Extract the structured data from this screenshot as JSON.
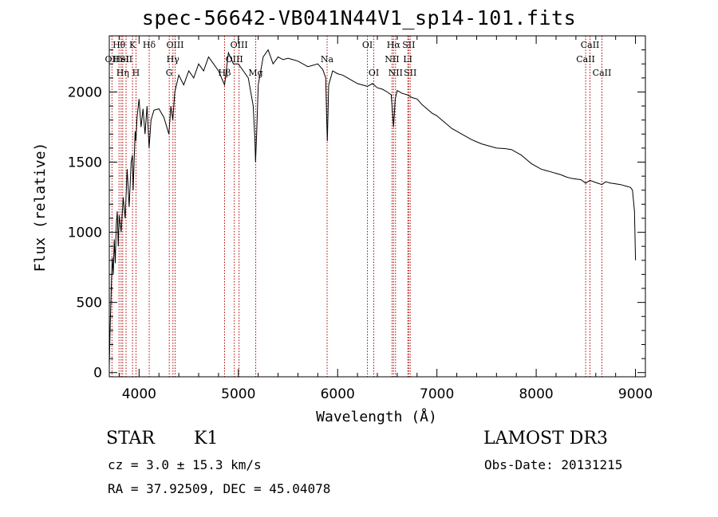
{
  "colors": {
    "spectrum": "#000000",
    "line_marker": "#b00000",
    "axes": "#000000",
    "background": "#ffffff"
  },
  "info": {
    "object_class": "STAR",
    "subclass": "K1",
    "survey": "LAMOST DR3",
    "cz": "cz = 3.0 ± 15.3 km/s",
    "obs_date": "Obs-Date: 20131215",
    "ra_dec": "RA =  37.92509, DEC =  45.04078"
  },
  "chart_data": {
    "type": "line",
    "title": "spec-56642-VB041N44V1_sp14-101.fits",
    "xlabel": "Wavelength (Å)",
    "ylabel": "Flux (relative)",
    "xlim": [
      3700,
      9100
    ],
    "ylim": [
      -30,
      2400
    ],
    "xticks": [
      4000,
      5000,
      6000,
      7000,
      8000,
      9000
    ],
    "yticks": [
      0,
      500,
      1000,
      1500,
      2000
    ],
    "series": [
      {
        "name": "spectrum",
        "x": [
          3700,
          3710,
          3720,
          3730,
          3740,
          3750,
          3760,
          3770,
          3780,
          3790,
          3800,
          3820,
          3840,
          3860,
          3880,
          3900,
          3920,
          3933,
          3940,
          3960,
          3968,
          3980,
          4000,
          4020,
          4040,
          4060,
          4080,
          4101,
          4120,
          4150,
          4200,
          4250,
          4300,
          4320,
          4340,
          4360,
          4400,
          4450,
          4500,
          4550,
          4600,
          4650,
          4700,
          4750,
          4800,
          4861,
          4900,
          4950,
          5000,
          5050,
          5100,
          5150,
          5167,
          5173,
          5184,
          5200,
          5250,
          5300,
          5350,
          5400,
          5450,
          5500,
          5550,
          5600,
          5650,
          5700,
          5750,
          5800,
          5850,
          5880,
          5890,
          5896,
          5910,
          5950,
          6000,
          6050,
          6100,
          6150,
          6200,
          6250,
          6300,
          6350,
          6400,
          6450,
          6500,
          6540,
          6563,
          6580,
          6600,
          6650,
          6700,
          6750,
          6800,
          6850,
          6900,
          6950,
          7000,
          7050,
          7100,
          7150,
          7200,
          7250,
          7300,
          7350,
          7400,
          7450,
          7500,
          7550,
          7600,
          7650,
          7700,
          7750,
          7800,
          7850,
          7900,
          7950,
          8000,
          8050,
          8100,
          8150,
          8200,
          8250,
          8300,
          8350,
          8400,
          8450,
          8498,
          8542,
          8600,
          8662,
          8700,
          8750,
          8800,
          8850,
          8900,
          8950,
          8970,
          8990,
          9000
        ],
        "values": [
          50,
          350,
          600,
          820,
          700,
          950,
          780,
          1050,
          1150,
          900,
          1120,
          1000,
          1250,
          1100,
          1450,
          1180,
          1500,
          1550,
          1300,
          1720,
          1650,
          1820,
          1950,
          1750,
          1880,
          1700,
          1900,
          1600,
          1800,
          1870,
          1880,
          1820,
          1700,
          1900,
          1800,
          2000,
          2120,
          2050,
          2150,
          2100,
          2200,
          2150,
          2250,
          2200,
          2150,
          2050,
          2280,
          2200,
          2200,
          2150,
          2100,
          1900,
          1650,
          1500,
          1700,
          2050,
          2250,
          2300,
          2200,
          2250,
          2230,
          2240,
          2230,
          2220,
          2200,
          2180,
          2190,
          2200,
          2160,
          2100,
          1800,
          1650,
          2050,
          2150,
          2130,
          2120,
          2100,
          2080,
          2060,
          2050,
          2040,
          2060,
          2030,
          2020,
          2000,
          1980,
          1750,
          1950,
          2010,
          1990,
          1980,
          1960,
          1950,
          1910,
          1880,
          1850,
          1830,
          1800,
          1770,
          1740,
          1720,
          1700,
          1680,
          1660,
          1645,
          1630,
          1620,
          1610,
          1600,
          1598,
          1595,
          1590,
          1570,
          1550,
          1520,
          1490,
          1470,
          1450,
          1440,
          1430,
          1420,
          1410,
          1395,
          1385,
          1380,
          1375,
          1350,
          1370,
          1355,
          1340,
          1360,
          1350,
          1345,
          1340,
          1330,
          1320,
          1300,
          1150,
          800
        ]
      }
    ],
    "line_markers": [
      {
        "wavelength": 3727,
        "label": "OII",
        "row": 1
      },
      {
        "wavelength": 3798,
        "label": "Hθ",
        "row": 0
      },
      {
        "wavelength": 3819,
        "label": "HeI",
        "row": 1
      },
      {
        "wavelength": 3835,
        "label": "Hη",
        "row": 2
      },
      {
        "wavelength": 3869,
        "label": "SII",
        "row": 1
      },
      {
        "wavelength": 3934,
        "label": "K",
        "row": 0
      },
      {
        "wavelength": 3969,
        "label": "H",
        "row": 2
      },
      {
        "wavelength": 4102,
        "label": "Hδ",
        "row": 0
      },
      {
        "wavelength": 4304,
        "label": "G",
        "row": 2
      },
      {
        "wavelength": 4341,
        "label": "Hγ",
        "row": 1
      },
      {
        "wavelength": 4363,
        "label": "OIII",
        "row": 0
      },
      {
        "wavelength": 4861,
        "label": "Hβ",
        "row": 2
      },
      {
        "wavelength": 4959,
        "label": "OIII",
        "row": 1
      },
      {
        "wavelength": 5007,
        "label": "OIII",
        "row": 0
      },
      {
        "wavelength": 5175,
        "label": "Mg",
        "row": 2
      },
      {
        "wavelength": 5894,
        "label": "Na",
        "row": 1
      },
      {
        "wavelength": 6300,
        "label": "OI",
        "row": 0
      },
      {
        "wavelength": 6364,
        "label": "OI",
        "row": 2
      },
      {
        "wavelength": 6548,
        "label": "NII",
        "row": 1
      },
      {
        "wavelength": 6563,
        "label": "Hα",
        "row": 0
      },
      {
        "wavelength": 6583,
        "label": "NII",
        "row": 2
      },
      {
        "wavelength": 6707,
        "label": "LI",
        "row": 1
      },
      {
        "wavelength": 6716,
        "label": "SII",
        "row": 0
      },
      {
        "wavelength": 6731,
        "label": "SII",
        "row": 2
      },
      {
        "wavelength": 8498,
        "label": "CaII",
        "row": 1
      },
      {
        "wavelength": 8542,
        "label": "CaII",
        "row": 0
      },
      {
        "wavelength": 8662,
        "label": "CaII",
        "row": 2
      }
    ]
  }
}
